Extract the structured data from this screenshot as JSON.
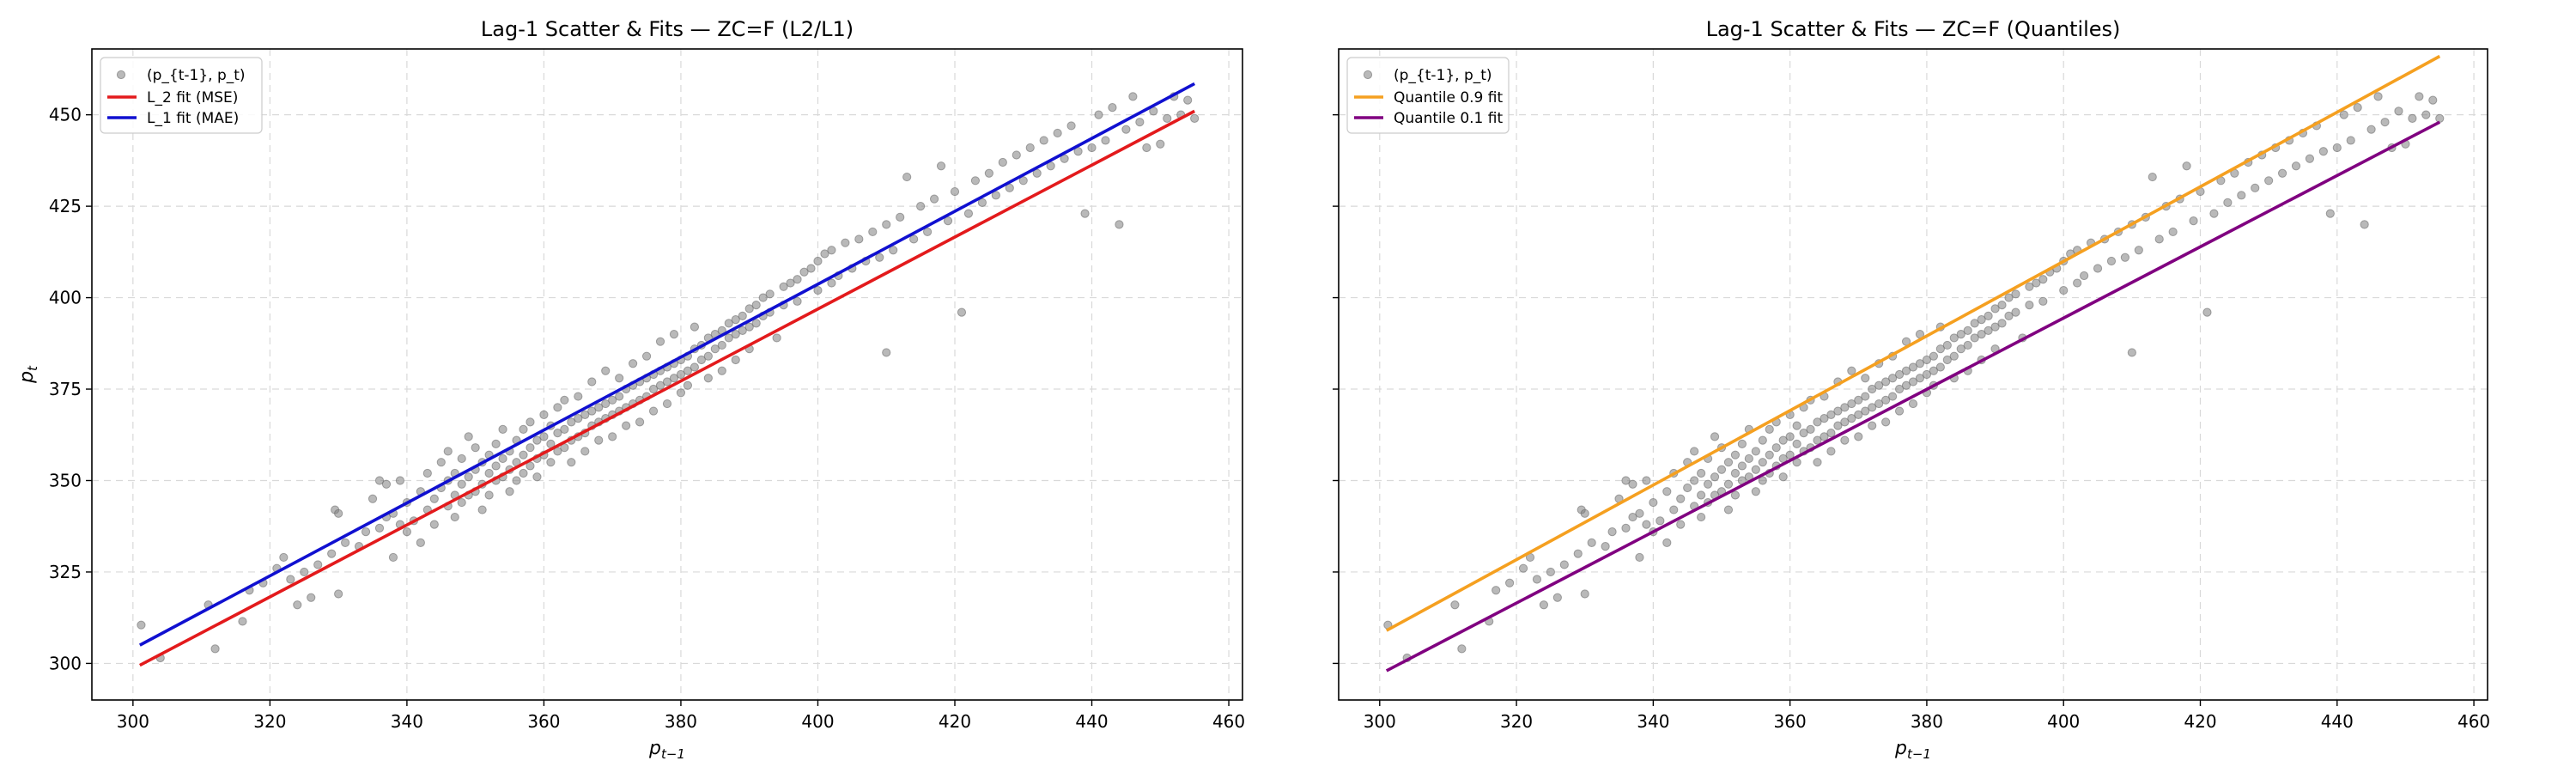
{
  "chart_data": [
    {
      "type": "scatter",
      "title": "Lag-1 Scatter & Fits — ZC=F (L2/L1)",
      "xlabel": "p_{t-1}",
      "ylabel": "p_t",
      "xlim": [
        294,
        462
      ],
      "ylim": [
        290,
        468
      ],
      "xticks": [
        300,
        320,
        340,
        360,
        380,
        400,
        420,
        440,
        460
      ],
      "yticks": [
        300,
        325,
        350,
        375,
        400,
        425,
        450
      ],
      "show_y_tick_labels": true,
      "grid": true,
      "legend_position": "upper-left",
      "scatter": {
        "name": "(p_{t-1}, p_t)",
        "color": "#808080",
        "points": "shared_points"
      },
      "lines": [
        {
          "name": "L_2 fit (MSE)",
          "color": "#e31a1c",
          "x": [
            301,
            455
          ],
          "y": [
            299.5,
            451.0
          ]
        },
        {
          "name": "L_1 fit (MAE)",
          "color": "#1010d0",
          "x": [
            301,
            455
          ],
          "y": [
            305.0,
            458.5
          ]
        }
      ]
    },
    {
      "type": "scatter",
      "title": "Lag-1 Scatter & Fits — ZC=F (Quantiles)",
      "xlabel": "p_{t-1}",
      "ylabel": "",
      "xlim": [
        294,
        462
      ],
      "ylim": [
        290,
        468
      ],
      "xticks": [
        300,
        320,
        340,
        360,
        380,
        400,
        420,
        440,
        460
      ],
      "yticks": [
        300,
        325,
        350,
        375,
        400,
        425,
        450
      ],
      "show_y_tick_labels": false,
      "grid": true,
      "legend_position": "upper-left",
      "scatter": {
        "name": "(p_{t-1}, p_t)",
        "color": "#808080",
        "points": "shared_points"
      },
      "lines": [
        {
          "name": "Quantile 0.9 fit",
          "color": "#f5a020",
          "x": [
            301,
            455
          ],
          "y": [
            309.0,
            466.0
          ]
        },
        {
          "name": "Quantile 0.1 fit",
          "color": "#800080",
          "x": [
            301,
            455
          ],
          "y": [
            298.0,
            448.0
          ]
        }
      ]
    }
  ],
  "shared_points": [
    [
      301.2,
      310.5
    ],
    [
      304,
      301.5
    ],
    [
      311,
      316
    ],
    [
      312,
      304
    ],
    [
      316,
      311.5
    ],
    [
      317,
      320
    ],
    [
      319,
      322
    ],
    [
      321,
      326
    ],
    [
      322,
      329
    ],
    [
      323,
      323
    ],
    [
      324,
      316
    ],
    [
      325,
      325
    ],
    [
      326,
      318
    ],
    [
      327,
      327
    ],
    [
      329,
      330
    ],
    [
      329.5,
      342
    ],
    [
      330,
      341
    ],
    [
      330,
      319
    ],
    [
      331,
      333
    ],
    [
      333,
      332
    ],
    [
      334,
      336
    ],
    [
      335,
      345
    ],
    [
      336,
      337
    ],
    [
      336,
      350
    ],
    [
      337,
      340
    ],
    [
      337,
      349
    ],
    [
      338,
      329
    ],
    [
      338,
      341
    ],
    [
      339,
      338
    ],
    [
      339,
      350
    ],
    [
      340,
      344
    ],
    [
      340,
      336
    ],
    [
      341,
      339
    ],
    [
      342,
      347
    ],
    [
      342,
      333
    ],
    [
      343,
      352
    ],
    [
      343,
      342
    ],
    [
      344,
      338
    ],
    [
      344,
      345
    ],
    [
      345,
      348
    ],
    [
      345,
      355
    ],
    [
      346,
      343
    ],
    [
      346,
      350
    ],
    [
      346,
      358
    ],
    [
      347,
      340
    ],
    [
      347,
      346
    ],
    [
      347,
      352
    ],
    [
      348,
      344
    ],
    [
      348,
      349
    ],
    [
      348,
      356
    ],
    [
      349,
      351
    ],
    [
      349,
      346
    ],
    [
      349,
      362
    ],
    [
      350,
      353
    ],
    [
      350,
      347
    ],
    [
      350,
      359
    ],
    [
      351,
      349
    ],
    [
      351,
      355
    ],
    [
      351,
      342
    ],
    [
      352,
      352
    ],
    [
      352,
      357
    ],
    [
      352,
      346
    ],
    [
      353,
      354
    ],
    [
      353,
      360
    ],
    [
      353,
      350
    ],
    [
      354,
      356
    ],
    [
      354,
      351
    ],
    [
      354,
      364
    ],
    [
      355,
      358
    ],
    [
      355,
      353
    ],
    [
      355,
      347
    ],
    [
      356,
      355
    ],
    [
      356,
      361
    ],
    [
      356,
      350
    ],
    [
      357,
      357
    ],
    [
      357,
      364
    ],
    [
      357,
      352
    ],
    [
      358,
      359
    ],
    [
      358,
      354
    ],
    [
      358,
      366
    ],
    [
      359,
      361
    ],
    [
      359,
      356
    ],
    [
      359,
      351
    ],
    [
      360,
      362
    ],
    [
      360,
      357
    ],
    [
      360,
      368
    ],
    [
      361,
      360
    ],
    [
      361,
      365
    ],
    [
      361,
      355
    ],
    [
      362,
      363
    ],
    [
      362,
      358
    ],
    [
      362,
      370
    ],
    [
      363,
      364
    ],
    [
      363,
      359
    ],
    [
      363,
      372
    ],
    [
      364,
      366
    ],
    [
      364,
      361
    ],
    [
      364,
      355
    ],
    [
      365,
      367
    ],
    [
      365,
      362
    ],
    [
      365,
      373
    ],
    [
      366,
      368
    ],
    [
      366,
      363
    ],
    [
      366,
      358
    ],
    [
      367,
      369
    ],
    [
      367,
      365
    ],
    [
      367,
      377
    ],
    [
      368,
      370
    ],
    [
      368,
      366
    ],
    [
      368,
      361
    ],
    [
      369,
      371
    ],
    [
      369,
      367
    ],
    [
      369,
      380
    ],
    [
      370,
      372
    ],
    [
      370,
      368
    ],
    [
      370,
      362
    ],
    [
      371,
      373
    ],
    [
      371,
      369
    ],
    [
      371,
      378
    ],
    [
      372,
      375
    ],
    [
      372,
      370
    ],
    [
      372,
      365
    ],
    [
      373,
      376
    ],
    [
      373,
      371
    ],
    [
      373,
      382
    ],
    [
      374,
      377
    ],
    [
      374,
      372
    ],
    [
      374,
      366
    ],
    [
      375,
      378
    ],
    [
      375,
      373
    ],
    [
      375,
      384
    ],
    [
      376,
      379
    ],
    [
      376,
      375
    ],
    [
      376,
      369
    ],
    [
      377,
      380
    ],
    [
      377,
      376
    ],
    [
      377,
      388
    ],
    [
      378,
      381
    ],
    [
      378,
      377
    ],
    [
      378,
      371
    ],
    [
      379,
      382
    ],
    [
      379,
      378
    ],
    [
      379,
      390
    ],
    [
      380,
      383
    ],
    [
      380,
      379
    ],
    [
      380,
      374
    ],
    [
      381,
      384
    ],
    [
      381,
      380
    ],
    [
      381,
      376
    ],
    [
      382,
      386
    ],
    [
      382,
      381
    ],
    [
      382,
      392
    ],
    [
      383,
      387
    ],
    [
      383,
      383
    ],
    [
      384,
      389
    ],
    [
      384,
      384
    ],
    [
      384,
      378
    ],
    [
      385,
      390
    ],
    [
      385,
      386
    ],
    [
      386,
      391
    ],
    [
      386,
      387
    ],
    [
      386,
      380
    ],
    [
      387,
      393
    ],
    [
      387,
      389
    ],
    [
      388,
      394
    ],
    [
      388,
      390
    ],
    [
      388,
      383
    ],
    [
      389,
      395
    ],
    [
      389,
      391
    ],
    [
      390,
      397
    ],
    [
      390,
      392
    ],
    [
      390,
      386
    ],
    [
      391,
      398
    ],
    [
      391,
      393
    ],
    [
      392,
      400
    ],
    [
      392,
      395
    ],
    [
      393,
      401
    ],
    [
      393,
      396
    ],
    [
      394,
      389
    ],
    [
      395,
      403
    ],
    [
      395,
      398
    ],
    [
      396,
      404
    ],
    [
      397,
      405
    ],
    [
      397,
      399
    ],
    [
      398,
      407
    ],
    [
      399,
      408
    ],
    [
      400,
      410
    ],
    [
      400,
      402
    ],
    [
      401,
      412
    ],
    [
      402,
      404
    ],
    [
      402,
      413
    ],
    [
      403,
      406
    ],
    [
      404,
      415
    ],
    [
      405,
      408
    ],
    [
      406,
      416
    ],
    [
      407,
      410
    ],
    [
      408,
      418
    ],
    [
      409,
      411
    ],
    [
      410,
      385
    ],
    [
      410,
      420
    ],
    [
      411,
      413
    ],
    [
      412,
      422
    ],
    [
      413,
      433
    ],
    [
      414,
      416
    ],
    [
      415,
      425
    ],
    [
      416,
      418
    ],
    [
      417,
      427
    ],
    [
      418,
      436
    ],
    [
      419,
      421
    ],
    [
      420,
      429
    ],
    [
      421,
      396
    ],
    [
      422,
      423
    ],
    [
      423,
      432
    ],
    [
      424,
      426
    ],
    [
      425,
      434
    ],
    [
      426,
      428
    ],
    [
      427,
      437
    ],
    [
      428,
      430
    ],
    [
      429,
      439
    ],
    [
      430,
      432
    ],
    [
      431,
      441
    ],
    [
      432,
      434
    ],
    [
      433,
      443
    ],
    [
      434,
      436
    ],
    [
      435,
      445
    ],
    [
      436,
      438
    ],
    [
      437,
      447
    ],
    [
      438,
      440
    ],
    [
      439,
      423
    ],
    [
      440,
      441
    ],
    [
      441,
      450
    ],
    [
      442,
      443
    ],
    [
      443,
      452
    ],
    [
      444,
      420
    ],
    [
      445,
      446
    ],
    [
      446,
      455
    ],
    [
      447,
      448
    ],
    [
      448,
      441
    ],
    [
      449,
      451
    ],
    [
      450,
      442
    ],
    [
      451,
      449
    ],
    [
      452,
      455
    ],
    [
      453,
      450
    ],
    [
      454,
      454
    ],
    [
      455,
      449
    ]
  ]
}
